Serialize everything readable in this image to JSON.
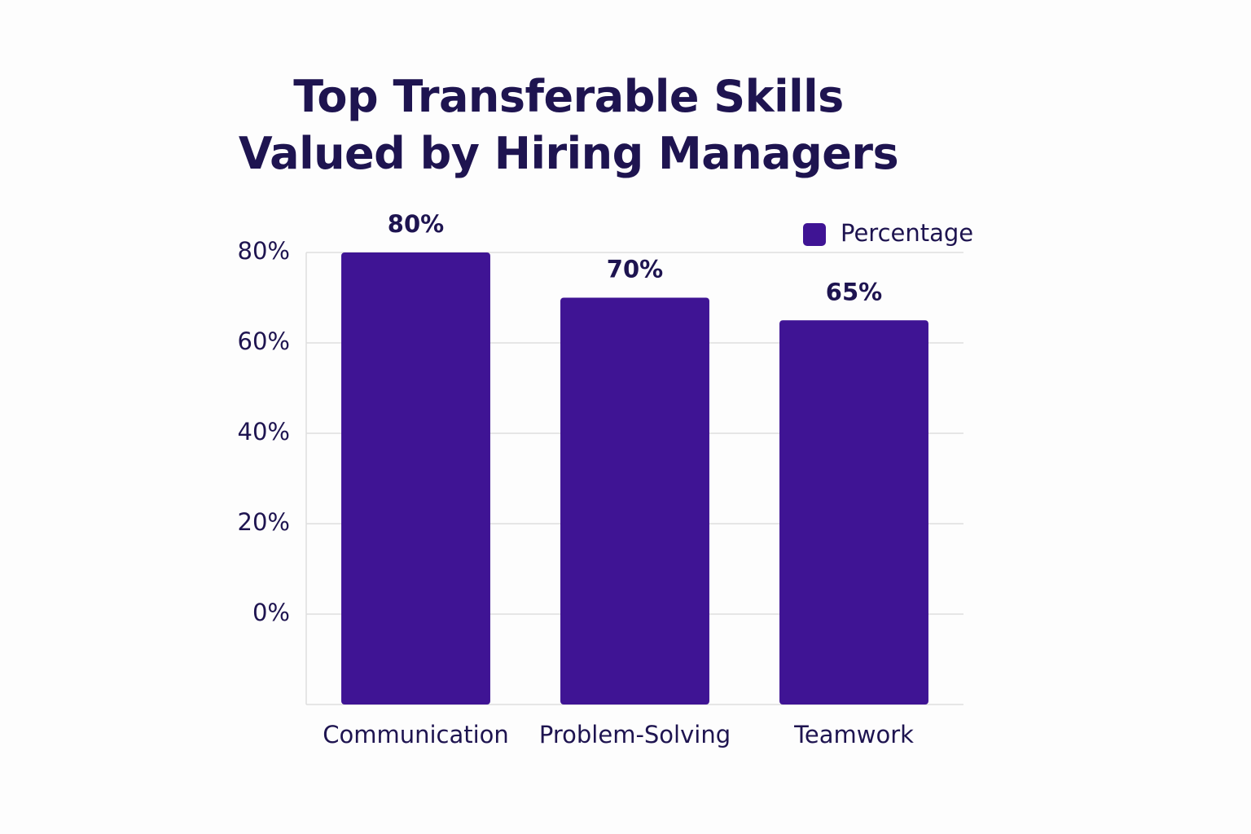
{
  "chart_data": {
    "type": "bar",
    "title": "Top Transferable Skills Valued by Hiring Managers",
    "categories": [
      "Communication",
      "Problem-Solving",
      "Teamwork"
    ],
    "series": [
      {
        "name": "Percentage",
        "color": "#3f1494",
        "values": [
          80,
          70,
          65
        ],
        "value_labels": [
          "80%",
          "70%",
          "65%"
        ]
      }
    ],
    "ylim": [
      -20,
      80
    ],
    "yticks": [
      {
        "value": 0,
        "label": "0%"
      },
      {
        "value": 20,
        "label": "20%"
      },
      {
        "value": 40,
        "label": "40%"
      },
      {
        "value": 60,
        "label": "60%"
      },
      {
        "value": 80,
        "label": "80%"
      }
    ],
    "grid": true,
    "legend": "top-right"
  }
}
